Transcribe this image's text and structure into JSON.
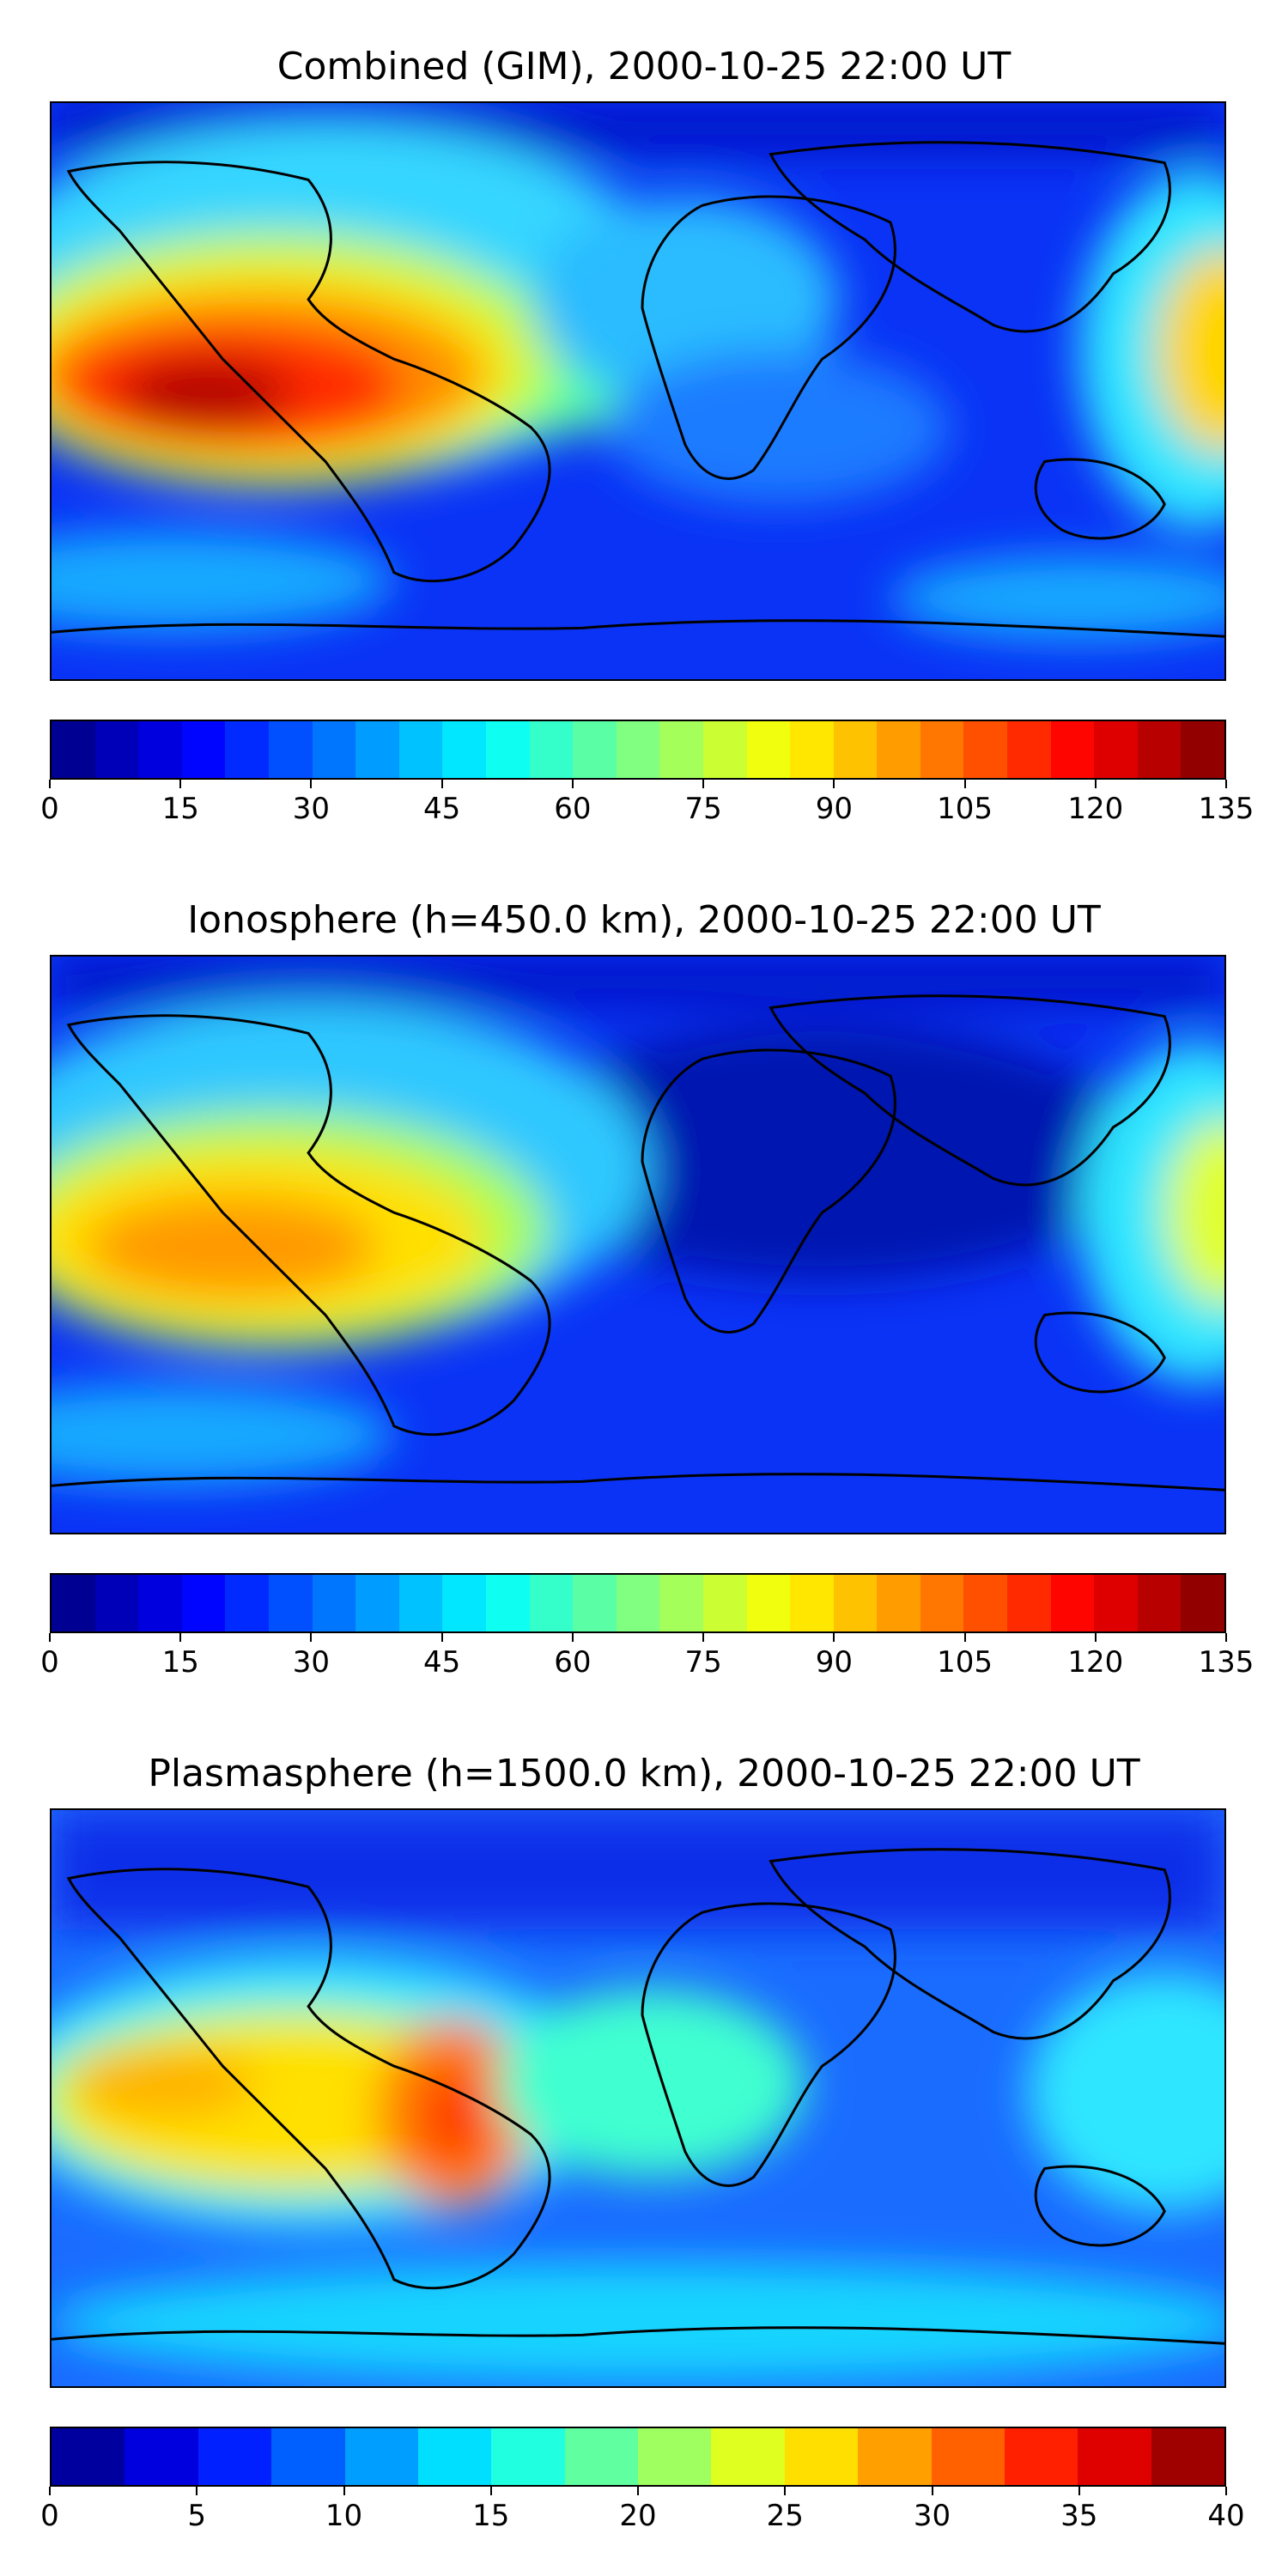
{
  "panels": [
    {
      "title": "Combined (GIM), 2000-10-25 22:00 UT",
      "colorbar": {
        "min": 0,
        "max": 135,
        "levels": 27,
        "ticks": [
          "0",
          "15",
          "30",
          "45",
          "60",
          "75",
          "90",
          "105",
          "120",
          "135"
        ]
      }
    },
    {
      "title": "Ionosphere  (h=450.0 km), 2000-10-25 22:00 UT",
      "colorbar": {
        "min": 0,
        "max": 135,
        "levels": 27,
        "ticks": [
          "0",
          "15",
          "30",
          "45",
          "60",
          "75",
          "90",
          "105",
          "120",
          "135"
        ]
      }
    },
    {
      "title": "Plasmasphere (h=1500.0 km), 2000-10-25 22:00 UT",
      "colorbar": {
        "min": 0,
        "max": 40,
        "levels": 16,
        "ticks": [
          "0",
          "5",
          "10",
          "15",
          "20",
          "25",
          "30",
          "35",
          "40"
        ]
      }
    }
  ],
  "colormap": "jet"
}
